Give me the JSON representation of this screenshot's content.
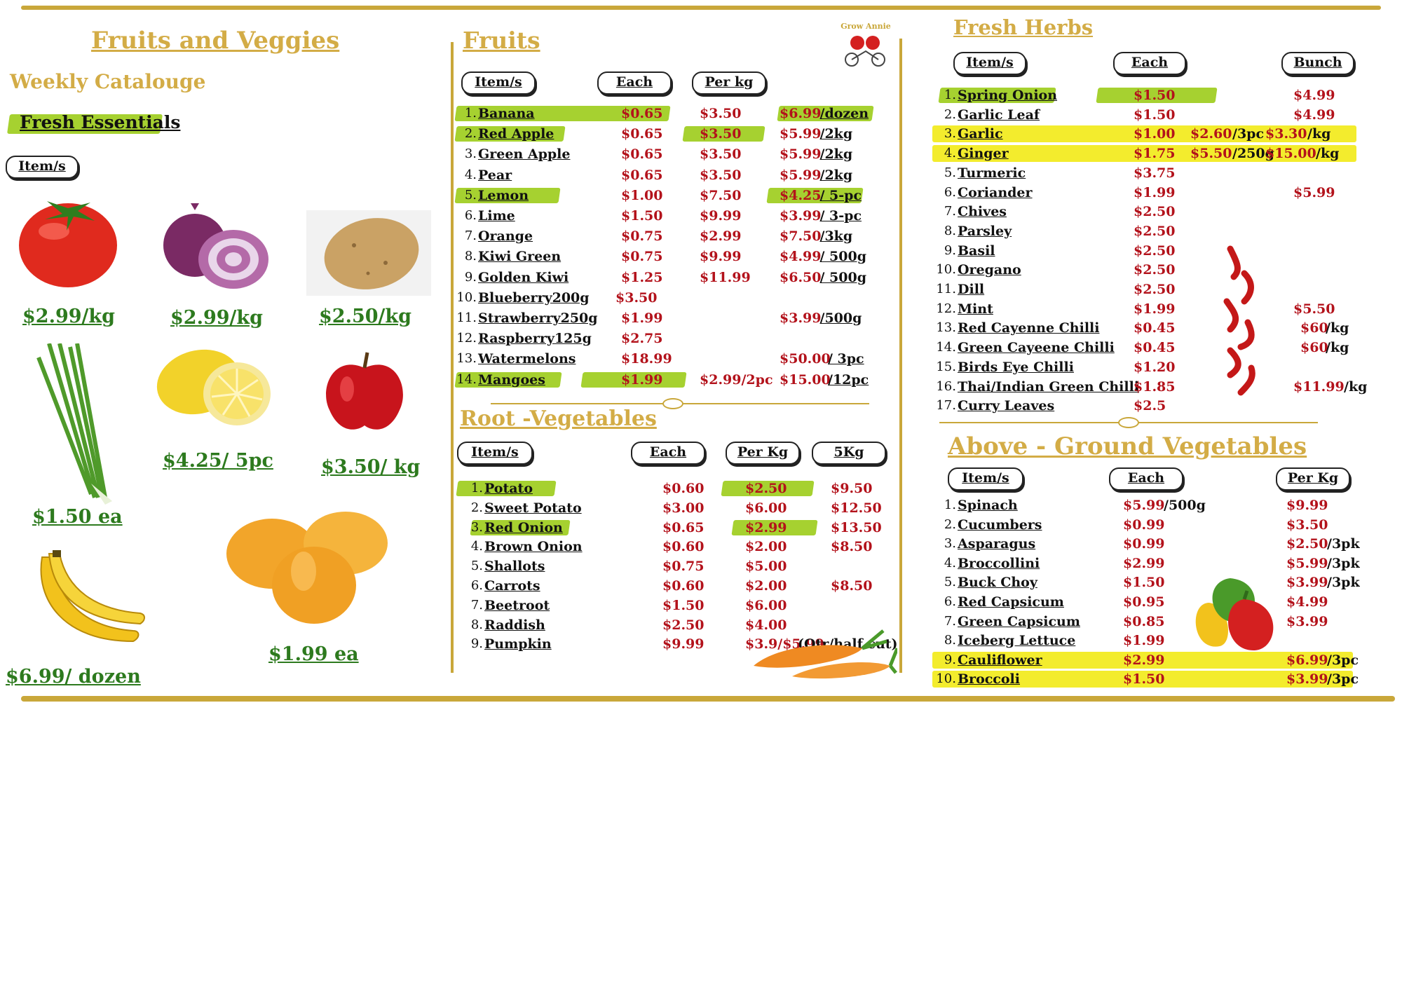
{
  "colors": {
    "gold": "#c9a73a",
    "title": "#d3ac46",
    "price_red": "#b3121b",
    "green_price": "#2d7a1e",
    "highlight_green": "#9ccc1a",
    "highlight_yellow": "#f3ec2d"
  },
  "left": {
    "title": "Fruits and Veggies",
    "subtitle": "Weekly Catalouge",
    "section": "Fresh Essentials",
    "header_item": "Item/s",
    "prices": {
      "tomato": "$2.99/kg",
      "onion": "$2.99/kg",
      "potato": "$2.50/kg",
      "spring_onion": "$1.50 ea",
      "lemon": "$4.25/ 5pc",
      "apple": "$3.50/ kg",
      "banana": "$6.99/ dozen",
      "mango": "$1.99 ea"
    },
    "icons": [
      "tomato-icon",
      "red-onion-icon",
      "potato-icon",
      "spring-onion-icon",
      "lemon-icon",
      "apple-icon",
      "banana-icon",
      "mango-icon"
    ]
  },
  "fruits": {
    "title": "Fruits ",
    "headers": [
      "Item/s",
      "Each",
      "Per kg"
    ],
    "rows": [
      {
        "n": "1.",
        "name": "Banana",
        "each": "$0.65",
        "perkg": "$3.50",
        "c3": "$6.99",
        "c3u": " /dozen"
      },
      {
        "n": "2.",
        "name": "Red Apple",
        "each": "$0.65",
        "perkg": "$3.50",
        "c3": "$5.99",
        "c3u": " /2kg"
      },
      {
        "n": "3.",
        "name": "Green Apple",
        "each": "$0.65",
        "perkg": "$3.50",
        "c3": "$5.99",
        "c3u": " /2kg"
      },
      {
        "n": "4.",
        "name": "Pear",
        "each": "$0.65",
        "perkg": "$3.50",
        "c3": "$5.99",
        "c3u": " /2kg"
      },
      {
        "n": "5.",
        "name": "Lemon",
        "each": "$1.00",
        "perkg": "$7.50",
        "c3": "$4.25",
        "c3u": " / 5-pc"
      },
      {
        "n": "6.",
        "name": "Lime",
        "each": "$1.50",
        "perkg": "$9.99",
        "c3": "$3.99",
        "c3u": " / 3-pc"
      },
      {
        "n": "7.",
        "name": "Orange",
        "each": "$0.75",
        "perkg": "$2.99",
        "c3": "$7.50",
        "c3u": " /3kg"
      },
      {
        "n": "8.",
        "name": "Kiwi Green",
        "each": "$0.75",
        "perkg": "$9.99",
        "c3": "$4.99",
        "c3u": " / 500g"
      },
      {
        "n": "9.",
        "name": "Golden Kiwi",
        "each": "$1.25",
        "perkg": "$11.99",
        "c3": "$6.50",
        "c3u": " / 500g"
      },
      {
        "n": "10.",
        "name": "Blueberry200g",
        "each": "$3.50",
        "perkg": "",
        "c3": "",
        "c3u": ""
      },
      {
        "n": "11.",
        "name": "Strawberry250g",
        "each": "$1.99",
        "perkg": "",
        "c3": "$3.99",
        "c3u": " /500g"
      },
      {
        "n": "12.",
        "name": "Raspberry125g",
        "each": "$2.75",
        "perkg": "",
        "c3": "",
        "c3u": ""
      },
      {
        "n": "13.",
        "name": "Watermelons",
        "each": "$18.99",
        "perkg": "",
        "c3": "$50.00",
        "c3u": " / 3pc"
      },
      {
        "n": "14.",
        "name": "Mangoes",
        "each": "$1.99",
        "perkg": "$2.99/2pc",
        "c3": "$15.00",
        "c3u": "/12pc"
      }
    ]
  },
  "logo_text": "Grow Annie",
  "root": {
    "title": "Root -Vegetables",
    "headers": [
      "Item/s",
      "Each",
      "Per Kg",
      "5Kg"
    ],
    "rows": [
      {
        "n": "1.",
        "name": "Potato",
        "each": "$0.60",
        "perkg": "$2.50",
        "c3": "$9.50"
      },
      {
        "n": "2.",
        "name": "Sweet Potato",
        "each": "$3.00",
        "perkg": "$6.00",
        "c3": "$12.50"
      },
      {
        "n": "3.",
        "name": "Red Onion",
        "each": "$0.65",
        "perkg": "$2.99",
        "c3": "$13.50"
      },
      {
        "n": "4.",
        "name": "Brown Onion",
        "each": "$0.60",
        "perkg": "$2.00",
        "c3": "$8.50"
      },
      {
        "n": "5.",
        "name": "Shallots",
        "each": "$0.75",
        "perkg": "$5.00",
        "c3": ""
      },
      {
        "n": "6.",
        "name": "Carrots",
        "each": "$0.60",
        "perkg": "$2.00",
        "c3": "$8.50"
      },
      {
        "n": "7.",
        "name": "Beetroot",
        "each": "$1.50",
        "perkg": "$6.00",
        "c3": ""
      },
      {
        "n": "8.",
        "name": "Raddish",
        "each": "$2.50",
        "perkg": "$4.00",
        "c3": ""
      },
      {
        "n": "9.",
        "name": "Pumpkin",
        "each": "$9.99",
        "perkg": "$3.9/$5.99",
        "c3": "(Qtr/half cut)"
      }
    ]
  },
  "herbs": {
    "title": "Fresh Herbs",
    "headers": [
      "Item/s",
      "Each",
      "Bunch"
    ],
    "rows": [
      {
        "n": "1.",
        "name": "Spring Onion",
        "each": "$1.50",
        "mid": "",
        "bunch": "$4.99",
        "bu": ""
      },
      {
        "n": "2.",
        "name": "Garlic Leaf",
        "each": "$1.50",
        "mid": "",
        "bunch": "$4.99",
        "bu": ""
      },
      {
        "n": "3.",
        "name": "Garlic",
        "each": "$1.00",
        "mid": "$2.60",
        "midu": "/3pc",
        "bunch": "$3.30",
        "bu": "/kg"
      },
      {
        "n": "4.",
        "name": "Ginger",
        "each": "$1.75",
        "mid": "$5.50",
        "midu": "/250g",
        "bunch": "$15.00",
        "bu": "/kg"
      },
      {
        "n": "5.",
        "name": "Turmeric",
        "each": "$3.75",
        "mid": "",
        "bunch": "",
        "bu": ""
      },
      {
        "n": "6.",
        "name": "Coriander",
        "each": "$1.99",
        "mid": "",
        "bunch": "$5.99",
        "bu": ""
      },
      {
        "n": "7.",
        "name": "Chives",
        "each": "$2.50",
        "mid": "",
        "bunch": "",
        "bu": ""
      },
      {
        "n": "8.",
        "name": "Parsley",
        "each": "$2.50",
        "mid": "",
        "bunch": "",
        "bu": ""
      },
      {
        "n": "9.",
        "name": "Basil",
        "each": "$2.50",
        "mid": "",
        "bunch": "",
        "bu": ""
      },
      {
        "n": "10.",
        "name": "Oregano",
        "each": "$2.50",
        "mid": "",
        "bunch": "",
        "bu": ""
      },
      {
        "n": "11.",
        "name": "Dill",
        "each": "$2.50",
        "mid": "",
        "bunch": "",
        "bu": ""
      },
      {
        "n": "12.",
        "name": "Mint",
        "each": "$1.99",
        "mid": "",
        "bunch": "$5.50",
        "bu": ""
      },
      {
        "n": "13.",
        "name": "Red Cayenne Chilli",
        "each": "$0.45",
        "mid": "",
        "bunch": "$60",
        "bu": "/kg"
      },
      {
        "n": "14.",
        "name": "Green Cayeene Chilli",
        "each": "$0.45",
        "mid": "",
        "bunch": "$60",
        "bu": "/kg"
      },
      {
        "n": "15.",
        "name": "Birds Eye Chilli",
        "each": "$1.20",
        "mid": "",
        "bunch": "",
        "bu": ""
      },
      {
        "n": "16.",
        "name": "Thai/Indian Green Chilli",
        "each": "$1.85",
        "mid": "",
        "bunch": "$11.99",
        "bu": "/kg"
      },
      {
        "n": "17.",
        "name": "Curry Leaves",
        "each": "$2.5",
        "mid": "",
        "bunch": "",
        "bu": ""
      }
    ]
  },
  "above": {
    "title": "Above - Ground Vegetables",
    "headers": [
      "Item/s",
      "Each",
      "Per Kg"
    ],
    "rows": [
      {
        "n": "1.",
        "name": "Spinach",
        "each": "$5.99",
        "eu": "/500g",
        "perkg": "$9.99",
        "pu": ""
      },
      {
        "n": "2.",
        "name": "Cucumbers",
        "each": "$0.99",
        "eu": "",
        "perkg": "$3.50",
        "pu": ""
      },
      {
        "n": "3.",
        "name": "Asparagus",
        "each": "$0.99",
        "eu": "",
        "perkg": "$2.50",
        "pu": "/3pk"
      },
      {
        "n": "4.",
        "name": "Broccollini",
        "each": "$2.99",
        "eu": "",
        "perkg": "$5.99",
        "pu": "/3pk"
      },
      {
        "n": "5.",
        "name": "Buck Choy",
        "each": "$1.50",
        "eu": "",
        "perkg": "$3.99",
        "pu": "/3pk"
      },
      {
        "n": "6.",
        "name": "Red Capsicum",
        "each": "$0.95",
        "eu": "",
        "perkg": "$4.99",
        "pu": ""
      },
      {
        "n": "7.",
        "name": "Green Capsicum",
        "each": "$0.85",
        "eu": "",
        "perkg": "$3.99",
        "pu": ""
      },
      {
        "n": "8.",
        "name": "Iceberg Lettuce",
        "each": "$1.99",
        "eu": "",
        "perkg": "",
        "pu": ""
      },
      {
        "n": "9.",
        "name": "Cauliflower",
        "each": "$2.99",
        "eu": "",
        "perkg": "$6.99",
        "pu": "/3pc"
      },
      {
        "n": "10.",
        "name": "Broccoli",
        "each": "$1.50",
        "eu": "",
        "perkg": "$3.99",
        "pu": "/3pc"
      }
    ]
  }
}
